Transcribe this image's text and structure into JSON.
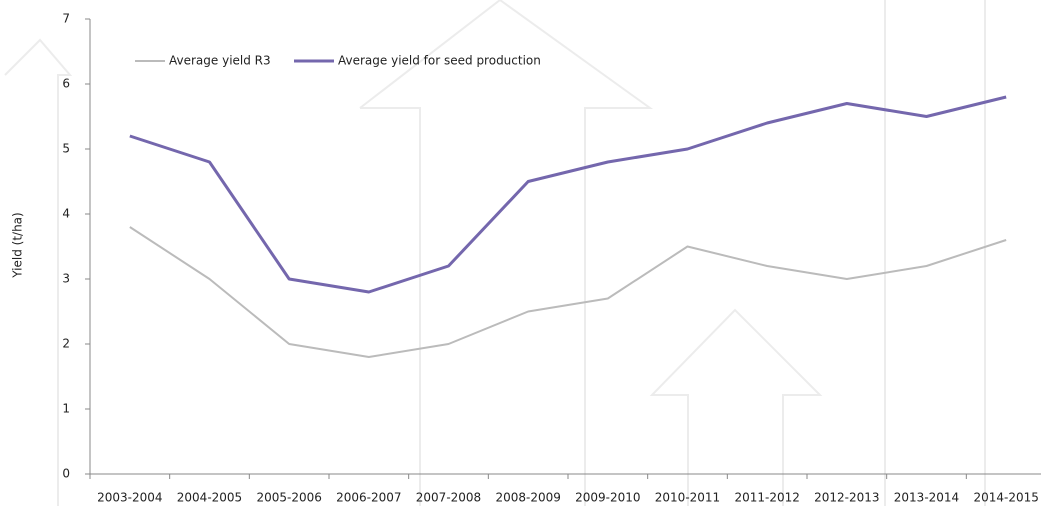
{
  "chart_data": {
    "type": "line",
    "y_label": "Yield (t/ha)",
    "categories": [
      "2003-2004",
      "2004-2005",
      "2005-2006",
      "2006-2007",
      "2007-2008",
      "2008-2009",
      "2009-2010",
      "2010-2011",
      "2011-2012",
      "2012-2013",
      "2013-2014",
      "2014-2015"
    ],
    "series": [
      {
        "name": "Average yield R3",
        "color": "#bbbbbb",
        "values": [
          3.8,
          3.0,
          2.0,
          1.8,
          2.0,
          2.5,
          2.7,
          3.5,
          3.2,
          3.0,
          3.2,
          3.6
        ]
      },
      {
        "name": "Average yield for seed production",
        "color": "#7467ad",
        "values": [
          5.2,
          4.8,
          3.0,
          2.8,
          3.2,
          4.5,
          4.8,
          5.0,
          5.4,
          5.7,
          5.5,
          5.8
        ]
      }
    ],
    "ylim": [
      0,
      7
    ],
    "yticks": [
      0,
      1,
      2,
      3,
      4,
      5,
      6,
      7
    ],
    "grid": false,
    "legend": "top-left"
  }
}
